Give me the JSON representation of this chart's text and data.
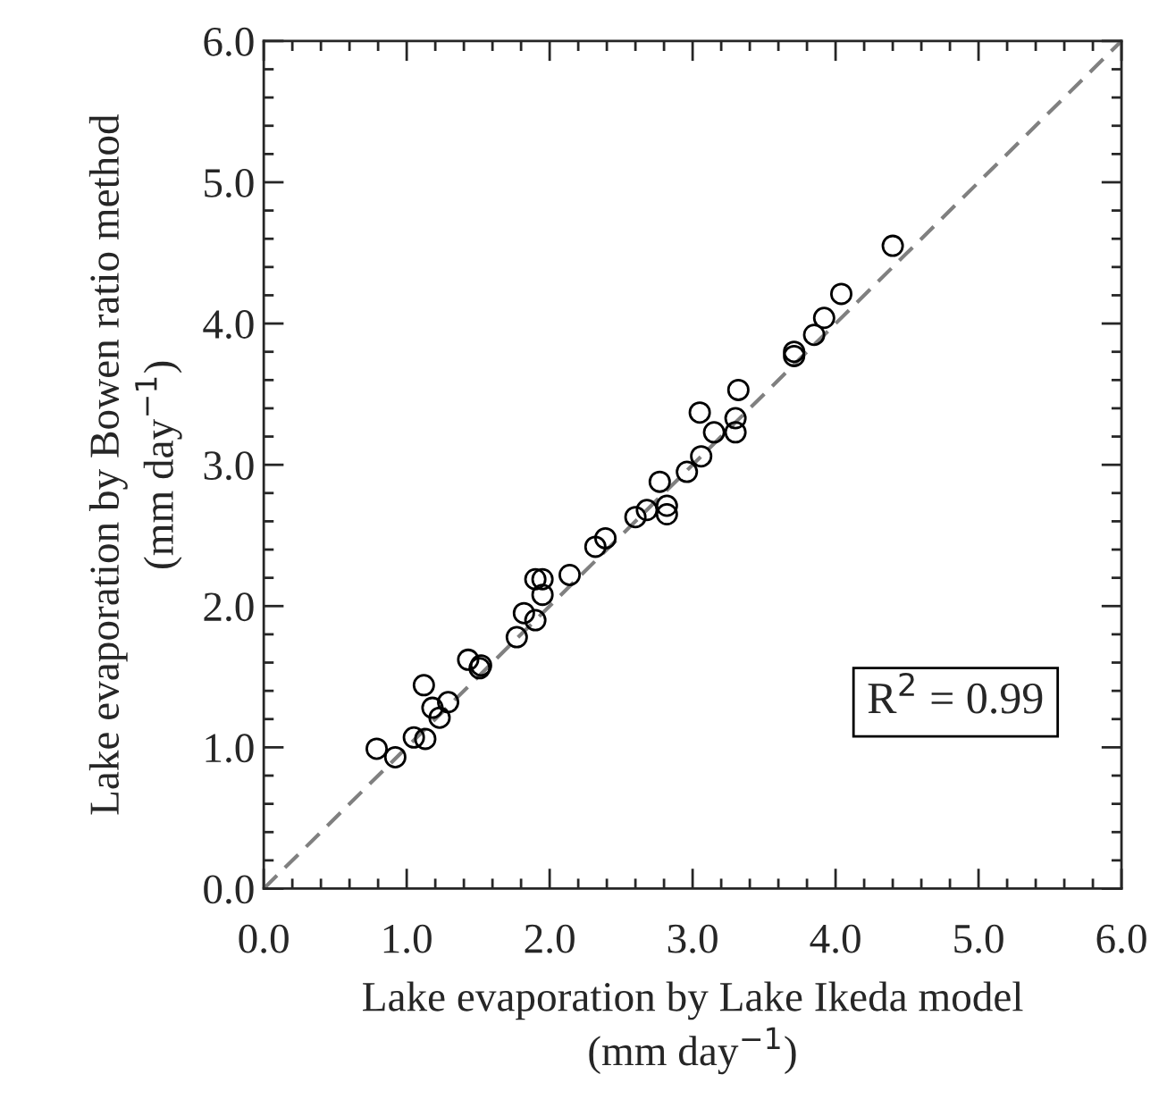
{
  "chart_data": {
    "type": "scatter",
    "xlabel": "Lake evaporation by Lake Ikeda model\n(mm day$^{−1}$)",
    "ylabel": "Lake evaporation by Bowen ratio method\n(mm day$^{−1}$)",
    "annotations": [
      "R$^{2}$ = 0.99"
    ],
    "xlim": [
      0,
      6
    ],
    "ylim": [
      0,
      6
    ],
    "xticks": [
      {
        "value": 0,
        "label": "0.0"
      },
      {
        "value": 1,
        "label": "1.0"
      },
      {
        "value": 2,
        "label": "2.0"
      },
      {
        "value": 3,
        "label": "3.0"
      },
      {
        "value": 4,
        "label": "4.0"
      },
      {
        "value": 5,
        "label": "5.0"
      },
      {
        "value": 6,
        "label": "6.0"
      }
    ],
    "yticks": [
      {
        "value": 0,
        "label": "0.0"
      },
      {
        "value": 1,
        "label": "1.0"
      },
      {
        "value": 2,
        "label": "2.0"
      },
      {
        "value": 3,
        "label": "3.0"
      },
      {
        "value": 4,
        "label": "4.0"
      },
      {
        "value": 5,
        "label": "5.0"
      },
      {
        "value": 6,
        "label": "6.0"
      }
    ],
    "grid": false,
    "marker": "circle",
    "series": [
      {
        "color": "#000000",
        "x": [
          0.79,
          0.92,
          1.05,
          1.13,
          1.12,
          1.18,
          1.23,
          1.29,
          1.43,
          1.51,
          1.52,
          1.77,
          1.82,
          1.9,
          1.95,
          1.95,
          1.9,
          2.14,
          2.32,
          2.39,
          2.6,
          2.68,
          2.82,
          2.82,
          2.77,
          2.96,
          3.06,
          3.15,
          3.05,
          3.3,
          3.3,
          3.32,
          3.71,
          3.71,
          3.85,
          3.92,
          4.04,
          4.4
        ],
        "values": [
          0.99,
          0.93,
          1.07,
          1.06,
          1.44,
          1.28,
          1.21,
          1.32,
          1.62,
          1.56,
          1.58,
          1.78,
          1.95,
          1.9,
          2.08,
          2.19,
          2.19,
          2.22,
          2.42,
          2.48,
          2.63,
          2.68,
          2.71,
          2.65,
          2.88,
          2.95,
          3.06,
          3.23,
          3.37,
          3.33,
          3.23,
          3.53,
          3.8,
          3.77,
          3.92,
          4.04,
          4.21,
          4.55
        ]
      },
      {
        "type": "line",
        "color": "#808080",
        "line_style": "dashed",
        "marker": "none",
        "x": [
          0,
          6
        ],
        "values": [
          0,
          6
        ]
      }
    ]
  }
}
